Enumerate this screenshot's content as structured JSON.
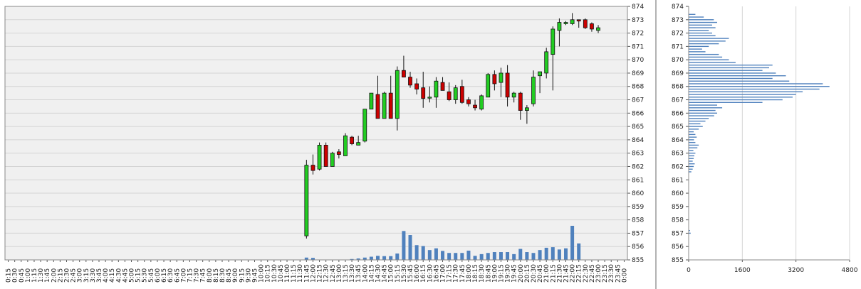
{
  "chart_data": [
    {
      "type": "candlestick",
      "title": "",
      "xlabel": "",
      "ylabel": "",
      "ylim": [
        855,
        874
      ],
      "y_ticks": [
        855,
        856,
        857,
        858,
        859,
        860,
        861,
        862,
        863,
        864,
        865,
        866,
        867,
        868,
        869,
        870,
        871,
        872,
        873,
        874
      ],
      "x_tick_labels": [
        "0:15",
        "0:30",
        "0:45",
        "1:00",
        "1:15",
        "1:30",
        "1:45",
        "2:00",
        "2:15",
        "2:30",
        "2:45",
        "3:00",
        "3:15",
        "3:30",
        "3:45",
        "4:00",
        "4:15",
        "4:30",
        "4:45",
        "5:00",
        "5:15",
        "5:30",
        "5:45",
        "6:00",
        "6:15",
        "6:30",
        "6:45",
        "7:00",
        "7:15",
        "7:30",
        "7:45",
        "8:00",
        "8:15",
        "8:30",
        "8:45",
        "9:00",
        "9:15",
        "9:30",
        "9:45",
        "10:00",
        "10:15",
        "10:30",
        "10:45",
        "11:00",
        "11:15",
        "11:30",
        "11:45",
        "12:00",
        "12:15",
        "12:30",
        "12:45",
        "13:00",
        "13:15",
        "13:30",
        "13:45",
        "14:00",
        "14:15",
        "14:30",
        "14:45",
        "15:00",
        "15:15",
        "15:30",
        "15:45",
        "16:00",
        "16:15",
        "16:30",
        "16:45",
        "17:00",
        "17:15",
        "17:30",
        "17:45",
        "18:00",
        "18:15",
        "18:30",
        "18:45",
        "19:00",
        "19:15",
        "19:30",
        "19:45",
        "20:00",
        "20:15",
        "20:30",
        "20:45",
        "21:00",
        "21:15",
        "21:30",
        "21:45",
        "22:00",
        "22:15",
        "22:30",
        "22:45",
        "23:00",
        "23:15",
        "23:30",
        "23:45",
        "0:00"
      ],
      "candles": [
        {
          "t": "11:45",
          "o": 856.8,
          "h": 862.5,
          "l": 856.6,
          "c": 862.1
        },
        {
          "t": "12:00",
          "o": 862.1,
          "h": 862.9,
          "l": 861.4,
          "c": 861.7
        },
        {
          "t": "12:15",
          "o": 861.8,
          "h": 863.8,
          "l": 861.7,
          "c": 863.6
        },
        {
          "t": "12:30",
          "o": 863.6,
          "h": 863.8,
          "l": 862.0,
          "c": 862.0
        },
        {
          "t": "12:45",
          "o": 862.0,
          "h": 863.1,
          "l": 862.0,
          "c": 863.0
        },
        {
          "t": "13:00",
          "o": 863.1,
          "h": 863.3,
          "l": 862.6,
          "c": 862.9
        },
        {
          "t": "13:15",
          "o": 862.8,
          "h": 864.5,
          "l": 862.8,
          "c": 864.3
        },
        {
          "t": "13:30",
          "o": 864.2,
          "h": 864.3,
          "l": 863.6,
          "c": 863.7
        },
        {
          "t": "13:45",
          "o": 863.6,
          "h": 864.3,
          "l": 863.6,
          "c": 863.8
        },
        {
          "t": "14:00",
          "o": 863.9,
          "h": 866.3,
          "l": 863.8,
          "c": 866.3
        },
        {
          "t": "14:15",
          "o": 866.3,
          "h": 867.5,
          "l": 866.3,
          "c": 867.5
        },
        {
          "t": "14:30",
          "o": 867.4,
          "h": 868.8,
          "l": 865.6,
          "c": 865.6
        },
        {
          "t": "14:45",
          "o": 865.6,
          "h": 867.6,
          "l": 865.6,
          "c": 867.5
        },
        {
          "t": "15:00",
          "o": 867.5,
          "h": 868.8,
          "l": 865.6,
          "c": 865.6
        },
        {
          "t": "15:15",
          "o": 865.6,
          "h": 869.5,
          "l": 864.7,
          "c": 869.2
        },
        {
          "t": "15:30",
          "o": 869.2,
          "h": 870.3,
          "l": 868.7,
          "c": 868.7
        },
        {
          "t": "15:45",
          "o": 868.7,
          "h": 869.1,
          "l": 867.9,
          "c": 868.1
        },
        {
          "t": "16:00",
          "o": 868.2,
          "h": 868.6,
          "l": 867.4,
          "c": 867.8
        },
        {
          "t": "16:15",
          "o": 867.9,
          "h": 869.1,
          "l": 866.4,
          "c": 867.1
        },
        {
          "t": "16:30",
          "o": 867.2,
          "h": 868.0,
          "l": 866.8,
          "c": 867.2
        },
        {
          "t": "16:45",
          "o": 867.2,
          "h": 868.7,
          "l": 866.4,
          "c": 868.4
        },
        {
          "t": "17:00",
          "o": 868.3,
          "h": 868.7,
          "l": 867.7,
          "c": 867.7
        },
        {
          "t": "17:15",
          "o": 867.6,
          "h": 868.3,
          "l": 866.9,
          "c": 867.0
        },
        {
          "t": "17:30",
          "o": 867.0,
          "h": 868.1,
          "l": 866.7,
          "c": 867.9
        },
        {
          "t": "17:45",
          "o": 868.0,
          "h": 868.5,
          "l": 866.7,
          "c": 866.8
        },
        {
          "t": "18:00",
          "o": 867.0,
          "h": 867.2,
          "l": 866.5,
          "c": 866.7
        },
        {
          "t": "18:15",
          "o": 866.6,
          "h": 867.0,
          "l": 866.2,
          "c": 866.4
        },
        {
          "t": "18:30",
          "o": 866.3,
          "h": 867.4,
          "l": 866.2,
          "c": 867.3
        },
        {
          "t": "18:45",
          "o": 867.2,
          "h": 869.0,
          "l": 867.2,
          "c": 868.9
        },
        {
          "t": "19:00",
          "o": 868.9,
          "h": 869.2,
          "l": 867.7,
          "c": 868.2
        },
        {
          "t": "19:15",
          "o": 868.3,
          "h": 869.4,
          "l": 867.2,
          "c": 869.0
        },
        {
          "t": "19:30",
          "o": 869.0,
          "h": 869.6,
          "l": 866.5,
          "c": 867.2
        },
        {
          "t": "19:45",
          "o": 867.2,
          "h": 867.6,
          "l": 866.8,
          "c": 867.5
        },
        {
          "t": "20:00",
          "o": 867.5,
          "h": 867.6,
          "l": 865.5,
          "c": 866.2
        },
        {
          "t": "20:15",
          "o": 866.2,
          "h": 866.6,
          "l": 865.2,
          "c": 866.4
        },
        {
          "t": "20:30",
          "o": 866.7,
          "h": 869.2,
          "l": 866.5,
          "c": 868.7
        },
        {
          "t": "20:45",
          "o": 868.8,
          "h": 869.0,
          "l": 867.5,
          "c": 869.1
        },
        {
          "t": "21:00",
          "o": 869.0,
          "h": 870.9,
          "l": 868.6,
          "c": 870.6
        },
        {
          "t": "21:15",
          "o": 870.4,
          "h": 872.5,
          "l": 867.7,
          "c": 872.3
        },
        {
          "t": "21:30",
          "o": 872.2,
          "h": 873.1,
          "l": 871.0,
          "c": 872.8
        },
        {
          "t": "21:45",
          "o": 872.7,
          "h": 872.9,
          "l": 872.6,
          "c": 872.8
        },
        {
          "t": "22:00",
          "o": 872.7,
          "h": 873.5,
          "l": 872.6,
          "c": 873.0
        },
        {
          "t": "22:15",
          "o": 873.0,
          "h": 873.0,
          "l": 872.4,
          "c": 872.9
        },
        {
          "t": "22:30",
          "o": 873.0,
          "h": 873.1,
          "l": 872.3,
          "c": 872.4
        },
        {
          "t": "22:45",
          "o": 872.7,
          "h": 872.8,
          "l": 872.1,
          "c": 872.3
        },
        {
          "t": "23:00",
          "o": 872.2,
          "h": 872.6,
          "l": 872.0,
          "c": 872.4
        }
      ],
      "volume_bars": [
        {
          "t": "11:45",
          "v": 8
        },
        {
          "t": "12:00",
          "v": 7
        },
        {
          "t": "13:30",
          "v": 3
        },
        {
          "t": "13:45",
          "v": 5
        },
        {
          "t": "14:00",
          "v": 8
        },
        {
          "t": "14:15",
          "v": 11
        },
        {
          "t": "14:30",
          "v": 14
        },
        {
          "t": "14:45",
          "v": 13
        },
        {
          "t": "15:00",
          "v": 13
        },
        {
          "t": "15:15",
          "v": 22
        },
        {
          "t": "15:30",
          "v": 100
        },
        {
          "t": "15:45",
          "v": 86
        },
        {
          "t": "16:00",
          "v": 51
        },
        {
          "t": "16:15",
          "v": 48
        },
        {
          "t": "16:30",
          "v": 34
        },
        {
          "t": "16:45",
          "v": 40
        },
        {
          "t": "17:00",
          "v": 31
        },
        {
          "t": "17:15",
          "v": 24
        },
        {
          "t": "17:30",
          "v": 24
        },
        {
          "t": "17:45",
          "v": 24
        },
        {
          "t": "18:00",
          "v": 32
        },
        {
          "t": "18:15",
          "v": 14
        },
        {
          "t": "18:30",
          "v": 20
        },
        {
          "t": "18:45",
          "v": 24
        },
        {
          "t": "19:00",
          "v": 27
        },
        {
          "t": "19:15",
          "v": 27
        },
        {
          "t": "19:30",
          "v": 27
        },
        {
          "t": "19:45",
          "v": 20
        },
        {
          "t": "20:00",
          "v": 38
        },
        {
          "t": "20:15",
          "v": 27
        },
        {
          "t": "20:30",
          "v": 24
        },
        {
          "t": "20:45",
          "v": 34
        },
        {
          "t": "21:00",
          "v": 42
        },
        {
          "t": "21:15",
          "v": 44
        },
        {
          "t": "21:30",
          "v": 36
        },
        {
          "t": "21:45",
          "v": 40
        },
        {
          "t": "22:00",
          "v": 118
        },
        {
          "t": "22:15",
          "v": 57
        }
      ],
      "colors": {
        "up": "#22cc22",
        "down": "#cc0000",
        "volume": "#4f81bd",
        "grid": "#d4d4d4",
        "plot_bg": "#f0f0f0"
      }
    },
    {
      "type": "bar",
      "orientation": "horizontal",
      "title": "",
      "xlim": [
        0,
        4800
      ],
      "x_ticks": [
        "0",
        "1600",
        "3200",
        "4800"
      ],
      "y_ticks": [
        855,
        856,
        857,
        858,
        859,
        860,
        861,
        862,
        863,
        864,
        865,
        866,
        867,
        868,
        869,
        870,
        871,
        872,
        873,
        874
      ],
      "profile": [
        {
          "price": 857.0,
          "v": 60
        },
        {
          "price": 857.2,
          "v": 40
        },
        {
          "price": 861.6,
          "v": 80
        },
        {
          "price": 861.8,
          "v": 120
        },
        {
          "price": 862.0,
          "v": 150
        },
        {
          "price": 862.2,
          "v": 180
        },
        {
          "price": 862.4,
          "v": 120
        },
        {
          "price": 862.6,
          "v": 150
        },
        {
          "price": 862.8,
          "v": 170
        },
        {
          "price": 863.0,
          "v": 200
        },
        {
          "price": 863.2,
          "v": 140
        },
        {
          "price": 863.4,
          "v": 260
        },
        {
          "price": 863.6,
          "v": 300
        },
        {
          "price": 863.8,
          "v": 200
        },
        {
          "price": 864.0,
          "v": 160
        },
        {
          "price": 864.2,
          "v": 240
        },
        {
          "price": 864.4,
          "v": 200
        },
        {
          "price": 864.6,
          "v": 150
        },
        {
          "price": 864.8,
          "v": 300
        },
        {
          "price": 865.0,
          "v": 420
        },
        {
          "price": 865.2,
          "v": 350
        },
        {
          "price": 865.4,
          "v": 500
        },
        {
          "price": 865.6,
          "v": 600
        },
        {
          "price": 865.8,
          "v": 760
        },
        {
          "price": 866.0,
          "v": 850
        },
        {
          "price": 866.2,
          "v": 800
        },
        {
          "price": 866.4,
          "v": 1000
        },
        {
          "price": 866.6,
          "v": 850
        },
        {
          "price": 866.8,
          "v": 2200
        },
        {
          "price": 867.0,
          "v": 2800
        },
        {
          "price": 867.2,
          "v": 3100
        },
        {
          "price": 867.4,
          "v": 3200
        },
        {
          "price": 867.6,
          "v": 3400
        },
        {
          "price": 867.8,
          "v": 3900
        },
        {
          "price": 868.0,
          "v": 4200
        },
        {
          "price": 868.2,
          "v": 4000
        },
        {
          "price": 868.4,
          "v": 3000
        },
        {
          "price": 868.6,
          "v": 2500
        },
        {
          "price": 868.8,
          "v": 2900
        },
        {
          "price": 869.0,
          "v": 2600
        },
        {
          "price": 869.2,
          "v": 2200
        },
        {
          "price": 869.4,
          "v": 2400
        },
        {
          "price": 869.6,
          "v": 2500
        },
        {
          "price": 869.8,
          "v": 1400
        },
        {
          "price": 870.0,
          "v": 1200
        },
        {
          "price": 870.2,
          "v": 1000
        },
        {
          "price": 870.4,
          "v": 900
        },
        {
          "price": 870.6,
          "v": 500
        },
        {
          "price": 870.8,
          "v": 400
        },
        {
          "price": 871.0,
          "v": 600
        },
        {
          "price": 871.2,
          "v": 900
        },
        {
          "price": 871.4,
          "v": 1100
        },
        {
          "price": 871.6,
          "v": 1200
        },
        {
          "price": 871.8,
          "v": 800
        },
        {
          "price": 872.0,
          "v": 700
        },
        {
          "price": 872.2,
          "v": 600
        },
        {
          "price": 872.4,
          "v": 800
        },
        {
          "price": 872.6,
          "v": 700
        },
        {
          "price": 872.8,
          "v": 850
        },
        {
          "price": 873.0,
          "v": 750
        },
        {
          "price": 873.2,
          "v": 450
        },
        {
          "price": 873.4,
          "v": 200
        }
      ],
      "colors": {
        "bar": "#4f81bd",
        "grid": "#d4d4d4",
        "plot_bg": "#ffffff"
      }
    }
  ]
}
